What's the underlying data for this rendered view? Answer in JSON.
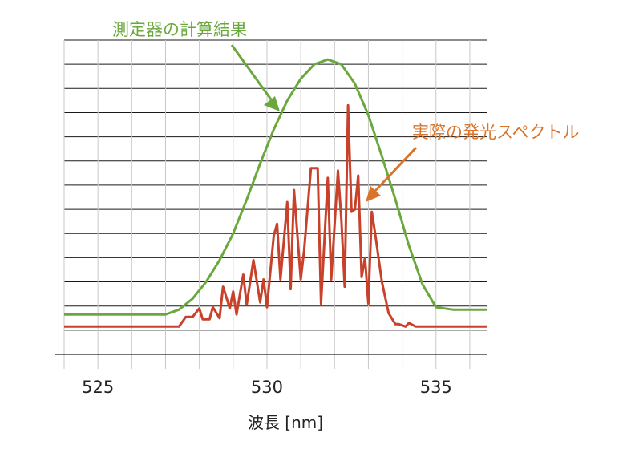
{
  "chart_data": {
    "type": "line",
    "xlabel": "波長 [nm]",
    "ylabel": "",
    "xlim": [
      524,
      536.5
    ],
    "ylim": [
      0,
      13
    ],
    "grid": true,
    "x_ticks": [
      525,
      530,
      535
    ],
    "annotations": [
      {
        "text": "測定器の計算結果",
        "color": "#6aa83d",
        "target_series": "measured"
      },
      {
        "text": "実際の発光スペクトル",
        "color": "#d9742a",
        "target_series": "actual"
      }
    ],
    "series": [
      {
        "key": "measured",
        "color": "#6aa83d",
        "x": [
          524,
          525,
          526,
          527,
          527.4,
          527.8,
          528.2,
          528.6,
          529,
          529.4,
          529.8,
          530.2,
          530.6,
          531,
          531.4,
          531.8,
          532.2,
          532.6,
          533,
          533.4,
          533.8,
          534.2,
          534.6,
          535,
          535.5,
          536.5
        ],
        "values": [
          1.65,
          1.65,
          1.65,
          1.65,
          1.85,
          2.3,
          3.0,
          3.9,
          5.0,
          6.4,
          7.9,
          9.3,
          10.5,
          11.4,
          12.0,
          12.2,
          12.0,
          11.2,
          9.9,
          8.2,
          6.4,
          4.5,
          2.9,
          1.95,
          1.85,
          1.85
        ]
      },
      {
        "key": "actual",
        "color": "#c8412a",
        "x": [
          524,
          525,
          526,
          527,
          527.4,
          527.6,
          527.8,
          528.0,
          528.1,
          528.3,
          528.4,
          528.6,
          528.7,
          528.9,
          529.0,
          529.1,
          529.3,
          529.4,
          529.6,
          529.8,
          529.9,
          530.0,
          530.2,
          530.3,
          530.4,
          530.6,
          530.7,
          530.8,
          531.0,
          531.1,
          531.3,
          531.5,
          531.6,
          531.8,
          531.9,
          532.1,
          532.2,
          532.3,
          532.4,
          532.5,
          532.6,
          532.7,
          532.8,
          532.9,
          533.0,
          533.1,
          533.2,
          533.4,
          533.6,
          533.8,
          533.9,
          534.1,
          534.2,
          534.4,
          535,
          536.5
        ],
        "values": [
          1.15,
          1.15,
          1.15,
          1.15,
          1.15,
          1.55,
          1.55,
          1.9,
          1.45,
          1.45,
          1.95,
          1.5,
          2.8,
          1.9,
          2.6,
          1.65,
          3.3,
          2.05,
          3.9,
          2.15,
          3.1,
          1.95,
          4.9,
          5.4,
          3.1,
          6.3,
          2.7,
          6.8,
          3.1,
          4.3,
          7.7,
          7.7,
          2.1,
          7.3,
          3.1,
          7.6,
          5.6,
          2.8,
          10.3,
          5.9,
          6.0,
          7.4,
          3.2,
          4.0,
          2.1,
          5.9,
          5.0,
          3.0,
          1.7,
          1.25,
          1.25,
          1.15,
          1.3,
          1.15,
          1.15,
          1.15
        ]
      }
    ]
  }
}
